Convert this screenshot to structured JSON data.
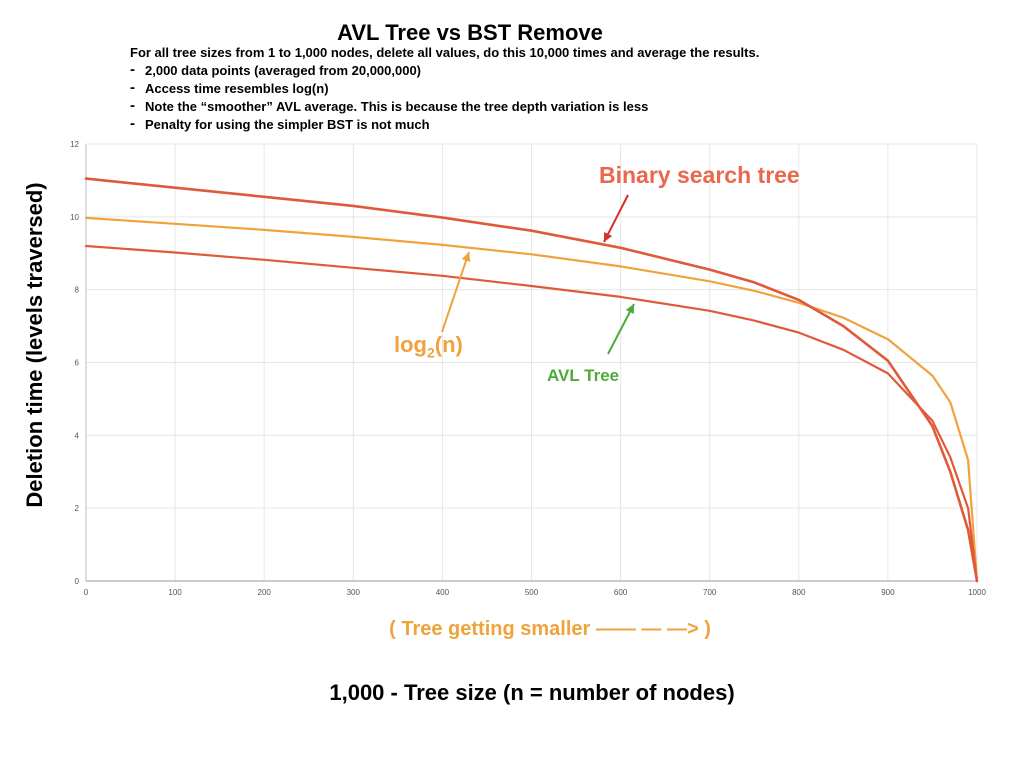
{
  "title": "AVL Tree vs BST Remove",
  "description": "For all tree sizes from 1 to 1,000 nodes, delete all values, do this 10,000 times and average the results.",
  "bullets": [
    "2,000 data points (averaged from 20,000,000)",
    "Access time resembles log(n)",
    "Note the “smoother” AVL average. This is because the tree depth variation is less",
    "Penalty for using the simpler BST is not much"
  ],
  "chart_data": {
    "type": "line",
    "xlabel": "1,000 - Tree size (n = number of nodes)",
    "ylabel": "Deletion time (levels traversed)",
    "xlim": [
      0,
      1000
    ],
    "ylim": [
      0,
      12
    ],
    "x_ticks": [
      "0",
      "100",
      "200",
      "300",
      "400",
      "500",
      "600",
      "700",
      "800",
      "900",
      "1000"
    ],
    "y_ticks": [
      "0",
      "2",
      "4",
      "6",
      "8",
      "10",
      "12"
    ],
    "grid": true,
    "legend": "none",
    "series": [
      {
        "name": "Binary search tree",
        "color": "#e05a3a",
        "x": [
          0,
          100,
          200,
          300,
          400,
          500,
          600,
          700,
          750,
          800,
          850,
          900,
          950,
          970,
          990,
          1000
        ],
        "values": [
          11.05,
          10.8,
          10.55,
          10.3,
          9.98,
          9.62,
          9.15,
          8.55,
          8.2,
          7.72,
          7.0,
          6.05,
          4.25,
          3.0,
          1.4,
          0
        ]
      },
      {
        "name": "log₂(n)",
        "color": "#f0a33c",
        "x": [
          0,
          100,
          200,
          300,
          400,
          500,
          600,
          700,
          750,
          800,
          850,
          900,
          950,
          970,
          990,
          1000
        ],
        "values": [
          9.97,
          9.81,
          9.64,
          9.45,
          9.23,
          8.97,
          8.64,
          8.23,
          7.97,
          7.64,
          7.23,
          6.64,
          5.64,
          4.91,
          3.32,
          0
        ]
      },
      {
        "name": "AVL Tree",
        "color": "#e05a3a",
        "x": [
          0,
          100,
          200,
          300,
          400,
          500,
          600,
          700,
          750,
          800,
          850,
          900,
          950,
          970,
          990,
          1000
        ],
        "values": [
          9.2,
          9.02,
          8.82,
          8.6,
          8.38,
          8.1,
          7.8,
          7.42,
          7.15,
          6.82,
          6.35,
          5.7,
          4.4,
          3.4,
          2.0,
          0
        ]
      }
    ],
    "annotations": [
      {
        "text": "Binary search tree",
        "color": "#e9674c",
        "points_to_x": 600
      },
      {
        "text_main": "log",
        "text_sub": "2",
        "text_tail": "(n)",
        "color": "#f0a33c",
        "points_to_x": 430
      },
      {
        "text": "AVL Tree",
        "color": "#4eaa3a",
        "points_to_x": 615
      }
    ],
    "direction_note": "( Tree getting smaller —— — —> )"
  }
}
